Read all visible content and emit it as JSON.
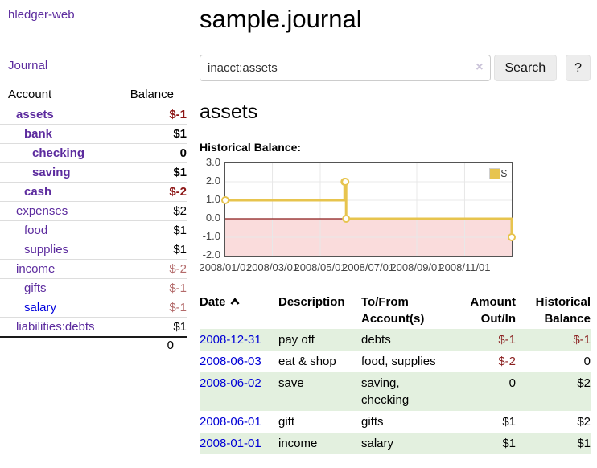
{
  "brand": "hledger-web",
  "nav": {
    "journal": "Journal"
  },
  "colors": {
    "link_purple": "#5c2b9e",
    "link_blue": "#0000dd",
    "negative_bold": "#8c1515",
    "negative_soft": "#b36a6a",
    "negative_register": "#8a1f1f",
    "row_green": "#e3f0df",
    "series_gold": "#e7c44e",
    "negative_area_pink": "#fadcdc",
    "zero_line_red": "#8b1a1a"
  },
  "sidebar": {
    "headers": {
      "account": "Account",
      "balance": "Balance"
    },
    "rows": [
      {
        "name": "assets",
        "balance": "$-1",
        "level": 1,
        "bold": true
      },
      {
        "name": "bank",
        "balance": "$1",
        "level": 2,
        "bold": true
      },
      {
        "name": "checking",
        "balance": "0",
        "level": 3,
        "bold": true
      },
      {
        "name": "saving",
        "balance": "$1",
        "level": 3,
        "bold": true
      },
      {
        "name": "cash",
        "balance": "$-2",
        "level": 2,
        "bold": true
      },
      {
        "name": "expenses",
        "balance": "$2",
        "level": 1,
        "bold": false
      },
      {
        "name": "food",
        "balance": "$1",
        "level": 2,
        "bold": false
      },
      {
        "name": "supplies",
        "balance": "$1",
        "level": 2,
        "bold": false
      },
      {
        "name": "income",
        "balance": "$-2",
        "level": 1,
        "bold": false
      },
      {
        "name": "gifts",
        "balance": "$-1",
        "level": 2,
        "bold": false
      },
      {
        "name": "salary",
        "balance": "$-1",
        "level": 2,
        "bold": false,
        "link_state": "unvisited"
      },
      {
        "name": "liabilities:debts",
        "balance": "$1",
        "level": 1,
        "bold": false
      }
    ],
    "total": "0"
  },
  "header": {
    "title": "sample.journal"
  },
  "search": {
    "value": "inacct:assets",
    "clear_icon": "×",
    "button_label": "Search",
    "help_label": "?"
  },
  "account_page": {
    "heading": "assets",
    "chart_label": "Historical Balance:"
  },
  "chart_data": {
    "type": "line",
    "title": "Historical Balance",
    "series": [
      {
        "name": "$",
        "step": true,
        "points": [
          [
            "2008-01-01",
            1
          ],
          [
            "2008-06-01",
            2
          ],
          [
            "2008-06-02",
            2
          ],
          [
            "2008-06-03",
            0
          ],
          [
            "2008-12-31",
            -1
          ]
        ]
      }
    ],
    "x_range": [
      "2008-01-01",
      "2008-12-31"
    ],
    "ylim": [
      -2,
      3
    ],
    "y_ticks": [
      "3.0",
      "2.0",
      "1.0",
      "0.0",
      "-1.0",
      "-2.0"
    ],
    "x_ticks": [
      {
        "date": "2008-01-01",
        "label": "2008/01/01"
      },
      {
        "date": "2008-03-01",
        "label": "2008/03/01"
      },
      {
        "date": "2008-05-01",
        "label": "2008/05/01"
      },
      {
        "date": "2008-07-01",
        "label": "2008/07/01"
      },
      {
        "date": "2008-09-01",
        "label": "2008/09/01"
      },
      {
        "date": "2008-11-01",
        "label": "2008/11/01"
      }
    ],
    "legend": {
      "label": "$",
      "position": "top-right"
    },
    "grid": true
  },
  "register": {
    "headers": {
      "date": "Date",
      "description": "Description",
      "accounts": "To/From\nAccount(s)",
      "amount": "Amount\nOut/In",
      "balance": "Historical\nBalance"
    },
    "rows": [
      {
        "date": "2008-12-31",
        "description": "pay off",
        "accounts": "debts",
        "amount": "$-1",
        "balance": "$-1"
      },
      {
        "date": "2008-06-03",
        "description": "eat & shop",
        "accounts": "food, supplies",
        "amount": "$-2",
        "balance": "0"
      },
      {
        "date": "2008-06-02",
        "description": "save",
        "accounts": "saving,\nchecking",
        "amount": "0",
        "balance": "$2"
      },
      {
        "date": "2008-06-01",
        "description": "gift",
        "accounts": "gifts",
        "amount": "$1",
        "balance": "$2"
      },
      {
        "date": "2008-01-01",
        "description": "income",
        "accounts": "salary",
        "amount": "$1",
        "balance": "$1"
      }
    ]
  }
}
